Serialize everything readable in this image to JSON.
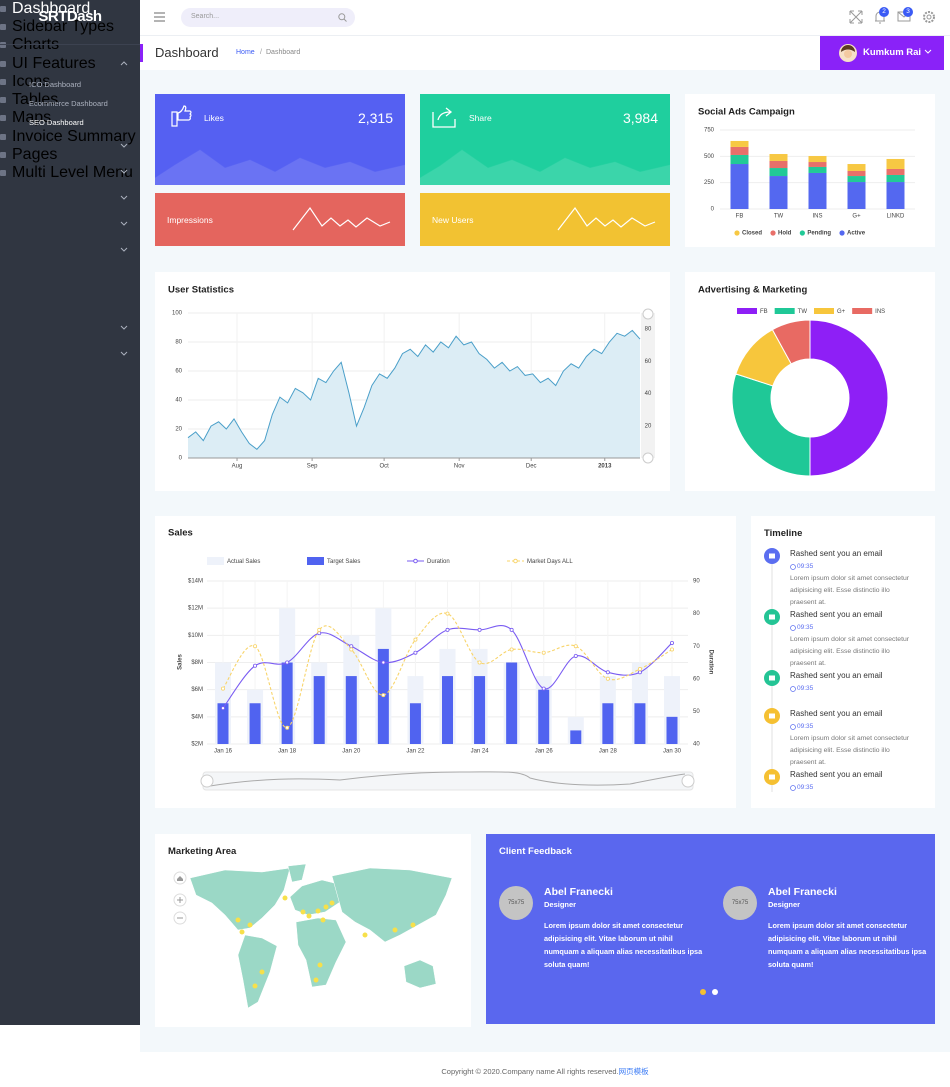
{
  "sidebar": {
    "brand": "SRTDash",
    "menu": [
      {
        "label": "Dashboard",
        "expandable": true,
        "expanded": true,
        "active_child": 2,
        "children": [
          "ICO Dashboard",
          "Ecommerce Dashboard",
          "SEO Dashboard"
        ]
      },
      {
        "label": "Sidebar Types",
        "expandable": true
      },
      {
        "label": "Charts",
        "expandable": true
      },
      {
        "label": "UI Features",
        "expandable": true
      },
      {
        "label": "Icons",
        "expandable": true
      },
      {
        "label": "Tables",
        "expandable": true
      },
      {
        "label": "Maps",
        "expandable": false
      },
      {
        "label": "Invoice Summary",
        "expandable": false
      },
      {
        "label": "Pages",
        "expandable": true
      },
      {
        "label": "Multi Level Menu",
        "expandable": true
      }
    ]
  },
  "header": {
    "search_placeholder": "Search...",
    "notifications": 2,
    "messages": 3
  },
  "page": {
    "title": "Dashboard",
    "breadcrumb": [
      "Home",
      "Dashboard"
    ],
    "user": "Kumkum Rai"
  },
  "stats": [
    {
      "label": "Likes",
      "value": "2,315",
      "color": "#5560f2"
    },
    {
      "label": "Share",
      "value": "3,984",
      "color": "#1fcf9e"
    },
    {
      "label": "Impressions",
      "color": "#e4655e"
    },
    {
      "label": "New Users",
      "color": "#f2c232"
    }
  ],
  "chart_data": [
    {
      "type": "bar",
      "stacked": true,
      "title": "Social Ads Campaign",
      "categories": [
        "FB",
        "TW",
        "INS",
        "G+",
        "LINKD"
      ],
      "series": [
        {
          "name": "Closed",
          "color": "#f7c843",
          "values": [
            57,
            66,
            57,
            66,
            95
          ]
        },
        {
          "name": "Hold",
          "color": "#e8706a",
          "values": [
            76,
            67,
            47,
            48,
            57
          ]
        },
        {
          "name": "Pending",
          "color": "#22c997",
          "values": [
            86,
            76,
            57,
            57,
            67
          ]
        },
        {
          "name": "Active",
          "color": "#5468f0",
          "values": [
            427,
            313,
            342,
            256,
            256
          ]
        }
      ],
      "ylim": [
        0,
        750
      ],
      "yticks": [
        0,
        250,
        500,
        750
      ],
      "grid": true,
      "legend": "bottom"
    },
    {
      "type": "donut",
      "title": "Advertising & Marketing",
      "categories": [
        "FB",
        "TW",
        "G+",
        "INS"
      ],
      "values": [
        50,
        30,
        12,
        8
      ],
      "colors": [
        "#8e1ff6",
        "#1fc897",
        "#f7c63c",
        "#e86a63"
      ],
      "legend": "top"
    },
    {
      "type": "area",
      "title": "User Statistics",
      "color": "#4a9fc9",
      "fill": "#dcedf5",
      "values": [
        14,
        18,
        12,
        22,
        25,
        20,
        27,
        18,
        10,
        6,
        12,
        30,
        42,
        38,
        48,
        45,
        40,
        55,
        52,
        60,
        66,
        45,
        22,
        35,
        50,
        58,
        55,
        62,
        72,
        75,
        70,
        78,
        73,
        80,
        76,
        84,
        78,
        80,
        72,
        68,
        62,
        66,
        60,
        63,
        57,
        58,
        52,
        55,
        50,
        60,
        65,
        62,
        70,
        75,
        72,
        80,
        86,
        84,
        88,
        82
      ],
      "xlim": [
        0,
        59
      ],
      "xticks": [
        {
          "value": 6.4,
          "label": "Aug"
        },
        {
          "value": 16.2,
          "label": "Sep"
        },
        {
          "value": 25.6,
          "label": "Oct"
        },
        {
          "value": 35.4,
          "label": "Nov"
        },
        {
          "value": 44.8,
          "label": "Dec"
        },
        {
          "value": 54.4,
          "label": "2013"
        }
      ],
      "ylim": [
        0,
        100
      ],
      "yticks": [
        0,
        20,
        40,
        60,
        80,
        100
      ],
      "y2lim": [
        0,
        90
      ],
      "y2ticks": [
        20,
        40,
        60,
        80
      ],
      "grid": true
    },
    {
      "type": "combo",
      "title": "Sales",
      "ylabel": "Sales",
      "y2label": "Duration",
      "categories": [
        "Jan 16",
        null,
        "Jan 18",
        null,
        "Jan 20",
        null,
        "Jan 22",
        null,
        "Jan 24",
        null,
        "Jan 26",
        null,
        "Jan 28",
        null,
        "Jan 30"
      ],
      "series": [
        {
          "name": "Actual Sales",
          "type": "bar",
          "color": "#eef2fa",
          "values": [
            8,
            6,
            12,
            8,
            10,
            12,
            7,
            9,
            9,
            8,
            7,
            4,
            7,
            8,
            7
          ]
        },
        {
          "name": "Target Sales",
          "type": "bar",
          "color": "#5063f0",
          "values": [
            5,
            5,
            8,
            7,
            7,
            9,
            5,
            7,
            7,
            8,
            6,
            3,
            5,
            5,
            4
          ]
        },
        {
          "name": "Duration",
          "type": "line",
          "axis": "y2",
          "color": "#7a5cf2",
          "dash": false,
          "values": [
            51,
            64,
            65,
            74,
            70,
            65,
            68,
            75,
            75,
            75,
            57,
            67,
            62,
            62,
            71
          ]
        },
        {
          "name": "Market Days ALL",
          "type": "line",
          "axis": "y2",
          "color": "#f8d46a",
          "dash": true,
          "values": [
            57,
            70,
            45,
            75,
            69,
            55,
            72,
            80,
            65,
            69,
            68,
            70,
            60,
            63,
            69
          ]
        }
      ],
      "ylim": [
        2,
        14
      ],
      "yticks": [
        {
          "value": 2,
          "label": "$2M"
        },
        {
          "value": 4,
          "label": "$4M"
        },
        {
          "value": 6,
          "label": "$6M"
        },
        {
          "value": 8,
          "label": "$8M"
        },
        {
          "value": 10,
          "label": "$10M"
        },
        {
          "value": 12,
          "label": "$12M"
        },
        {
          "value": 14,
          "label": "$14M"
        }
      ],
      "y2lim": [
        40,
        90
      ],
      "y2ticks": [
        40,
        50,
        60,
        70,
        80,
        90
      ],
      "grid": true,
      "legend": "top"
    }
  ],
  "timeline": {
    "title": "Timeline",
    "items": [
      {
        "title": "Rashed sent you an email",
        "time": "09:35",
        "color": "#5b6ef0",
        "text": "Lorem ipsum dolor sit amet consectetur adipisicing elit. Esse distinctio illo praesent at."
      },
      {
        "title": "Rashed sent you an email",
        "time": "09:35",
        "color": "#24c495",
        "text": "Lorem ipsum dolor sit amet consectetur adipisicing elit. Esse distinctio illo praesent at."
      },
      {
        "title": "Rashed sent you an email",
        "time": "09:35",
        "color": "#24c495"
      },
      {
        "title": "Rashed sent you an email",
        "time": "09:35",
        "color": "#f5c032",
        "text": "Lorem ipsum dolor sit amet consectetur adipisicing elit. Esse distinctio illo praesent at."
      },
      {
        "title": "Rashed sent you an email",
        "time": "09:35",
        "color": "#f5c032"
      }
    ]
  },
  "map": {
    "title": "Marketing Area"
  },
  "feedback": {
    "title": "Client Feedback",
    "items": [
      {
        "avatar": "75x75",
        "name": "Abel Franecki",
        "role": "Designer",
        "text": "Lorem ipsum dolor sit amet consectetur adipisicing elit. Vitae laborum ut nihil numquam a aliquam alias necessitatibus ipsa soluta quam!"
      },
      {
        "avatar": "75x75",
        "name": "Abel Franecki",
        "role": "Designer",
        "text": "Lorem ipsum dolor sit amet consectetur adipisicing elit. Vitae laborum ut nihil numquam a aliquam alias necessitatibus ipsa soluta quam!"
      }
    ]
  },
  "footer": {
    "text": "Copyright © 2020.Company name All rights reserved.",
    "link": "网页模板"
  }
}
